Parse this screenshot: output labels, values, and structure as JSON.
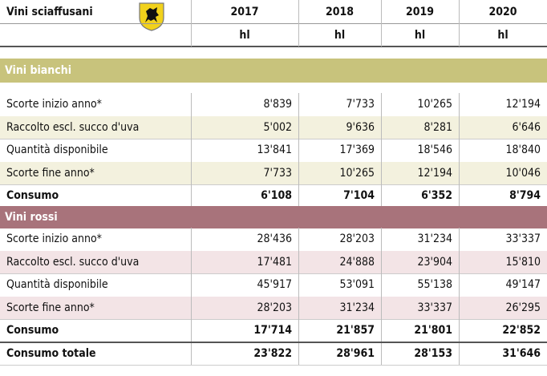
{
  "header": {
    "title": "Vini sciaffusani",
    "years": [
      "2017",
      "2018",
      "2019",
      "2020"
    ],
    "units": [
      "hl",
      "hl",
      "hl",
      "hl"
    ]
  },
  "sections": [
    {
      "name": "Vini bianchi",
      "color": "#c8c37c",
      "stripe": "#f3f1de",
      "rows": [
        {
          "label": "Scorte inizio anno*",
          "values": [
            "8'839",
            "7'733",
            "10'265",
            "12'194"
          ]
        },
        {
          "label": "Raccolto escl. succo d'uva",
          "values": [
            "5'002",
            "9'636",
            "8'281",
            "6'646"
          ]
        },
        {
          "label": "Quantità disponibile",
          "values": [
            "13'841",
            "17'369",
            "18'546",
            "18'840"
          ]
        },
        {
          "label": "Scorte fine anno*",
          "values": [
            "7'733",
            "10'265",
            "12'194",
            "10'046"
          ]
        },
        {
          "label": "Consumo",
          "values": [
            "6'108",
            "7'104",
            "6'352",
            "8'794"
          ],
          "bold": true
        }
      ]
    },
    {
      "name": "Vini rossi",
      "color": "#a8737b",
      "stripe": "#f3e4e6",
      "rows": [
        {
          "label": "Scorte inizio anno*",
          "values": [
            "28'436",
            "28'203",
            "31'234",
            "33'337"
          ]
        },
        {
          "label": "Raccolto escl. succo d'uva",
          "values": [
            "17'481",
            "24'888",
            "23'904",
            "15'810"
          ]
        },
        {
          "label": "Quantità disponibile",
          "values": [
            "45'917",
            "53'091",
            "55'138",
            "49'147"
          ]
        },
        {
          "label": "Scorte fine anno*",
          "values": [
            "28'203",
            "31'234",
            "33'337",
            "26'295"
          ]
        },
        {
          "label": "Consumo",
          "values": [
            "17'714",
            "21'857",
            "21'801",
            "22'852"
          ],
          "bold": true
        }
      ]
    }
  ],
  "total": {
    "label": "Consumo totale",
    "values": [
      "23'822",
      "28'961",
      "28'153",
      "31'646"
    ]
  }
}
